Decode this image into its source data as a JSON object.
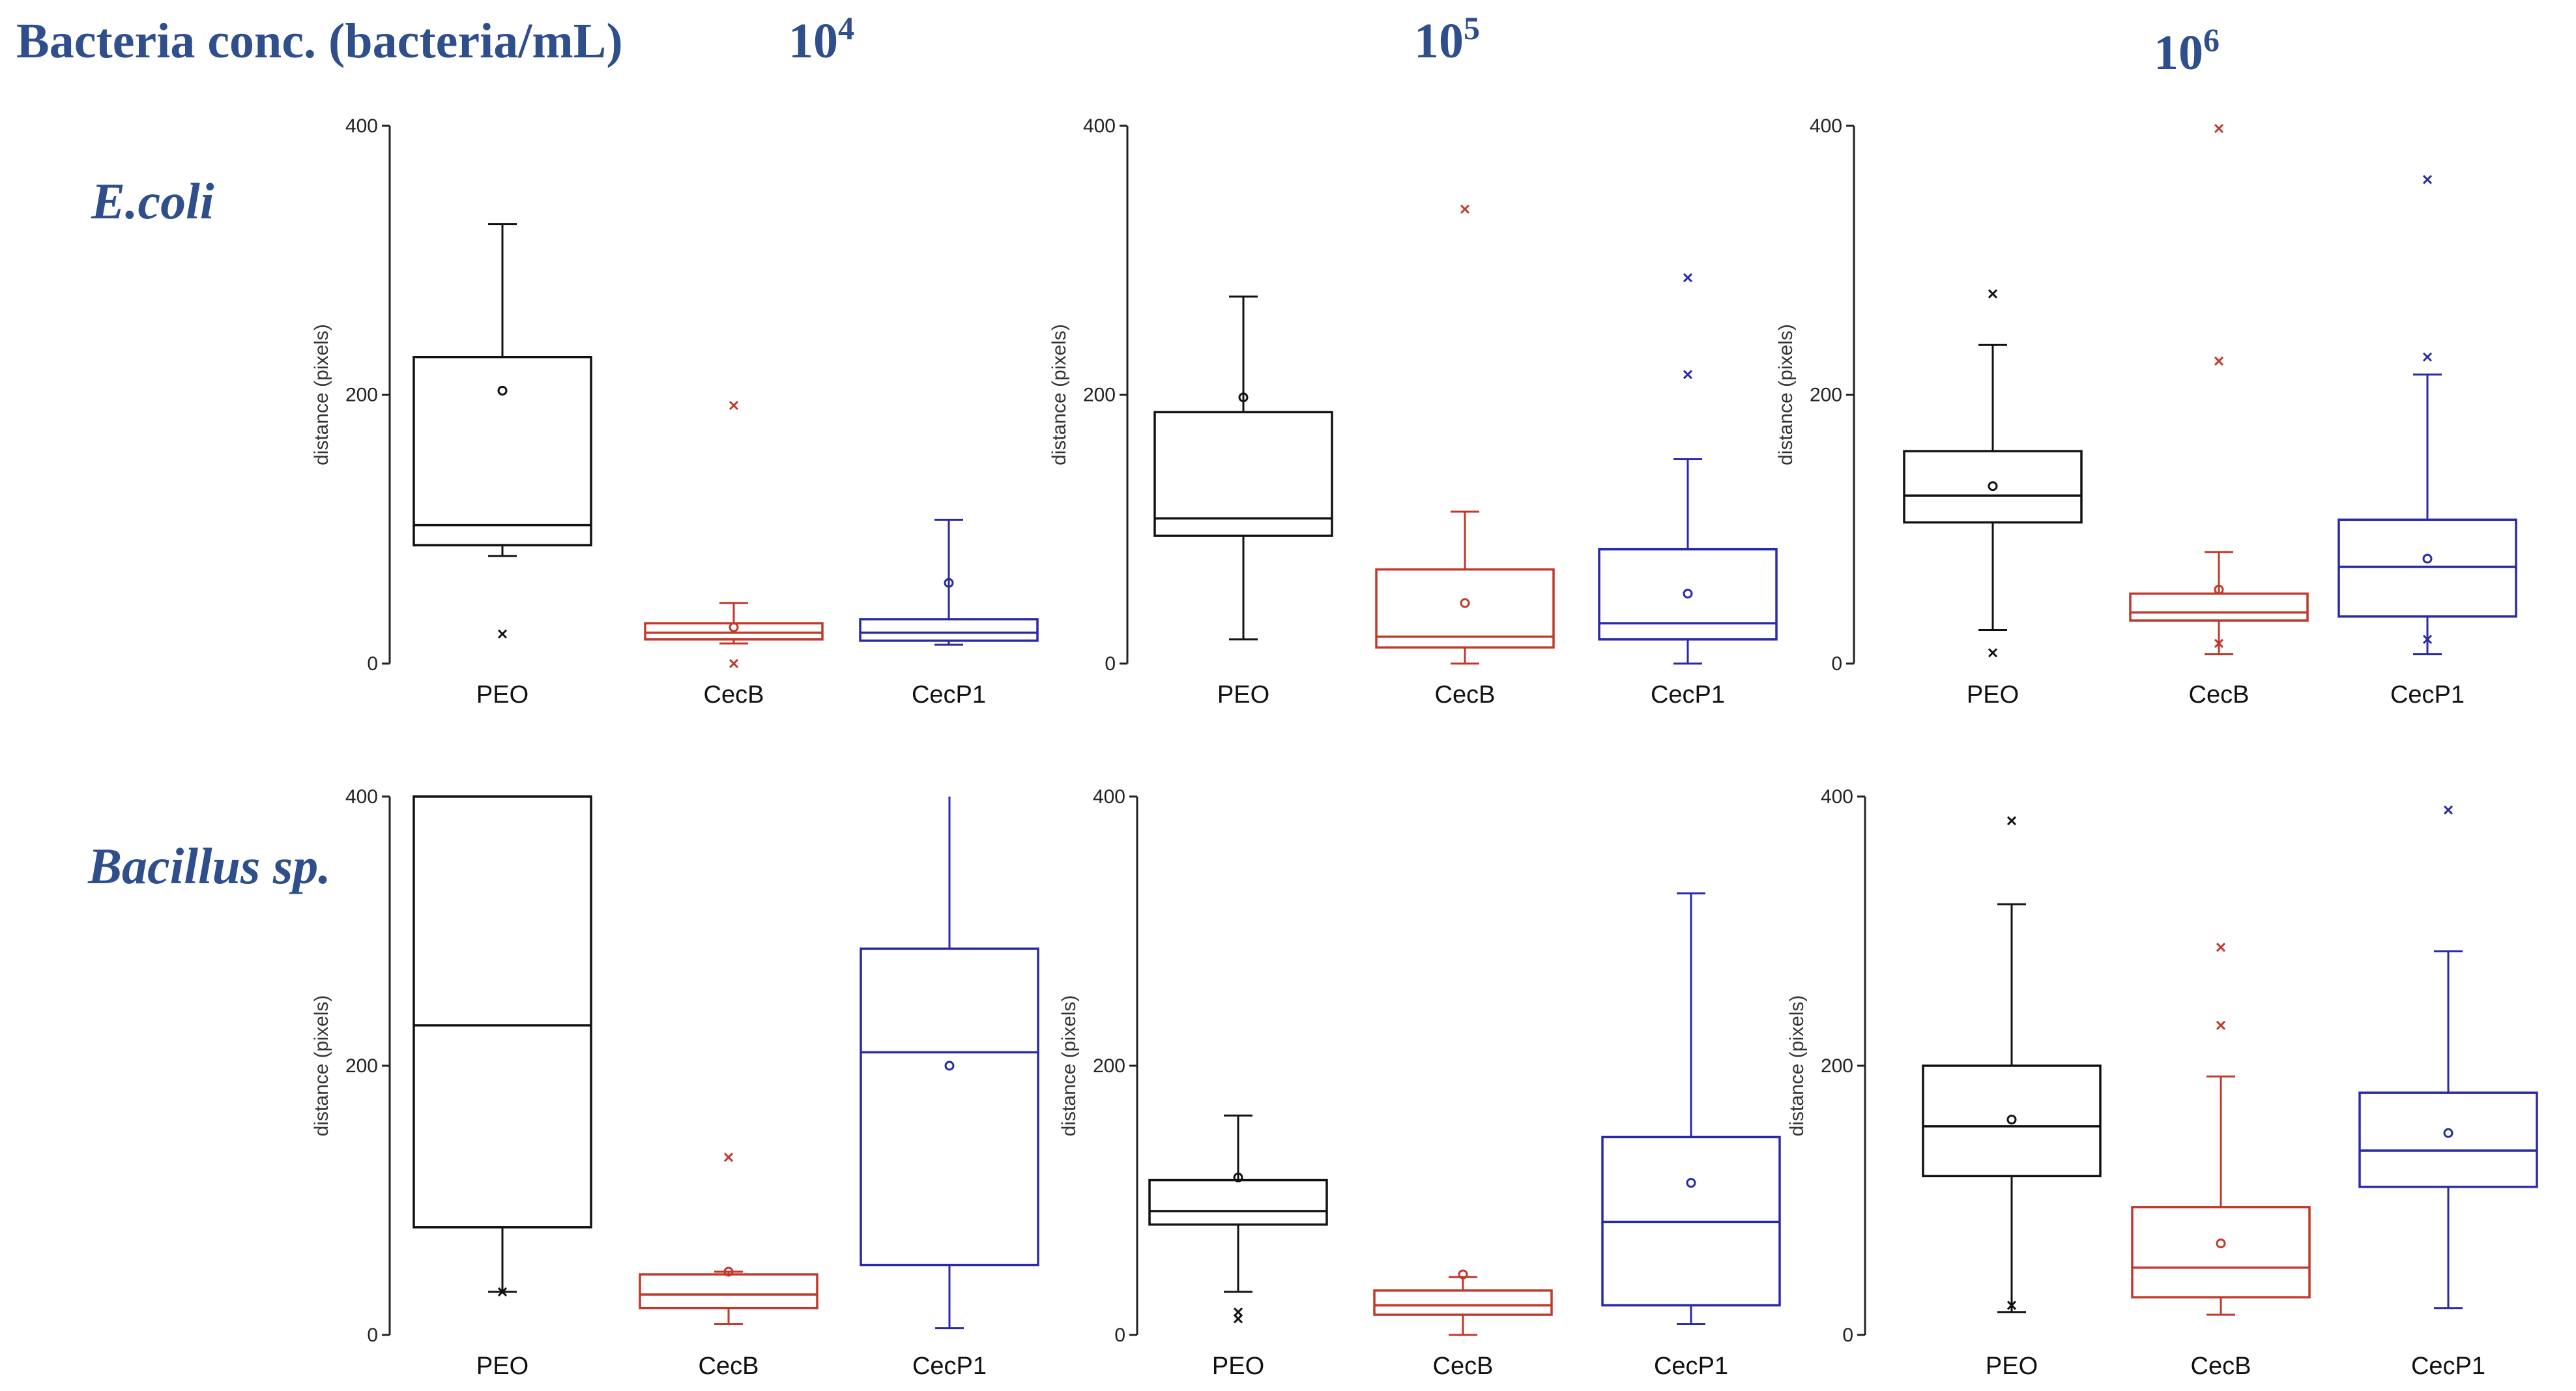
{
  "header": {
    "title": "Bacteria conc. (bacteria/mL)",
    "concentrations": [
      {
        "base": "10",
        "exp": "4"
      },
      {
        "base": "10",
        "exp": "5"
      },
      {
        "base": "10",
        "exp": "6"
      }
    ]
  },
  "rows": [
    "E.coli",
    "Bacillus sp."
  ],
  "colors": {
    "PEO": "#111111",
    "CecB": "#c0392b",
    "CecP1": "#2a2aa8",
    "header": "#2e4f8c"
  },
  "chart_data": [
    {
      "type": "box",
      "row": "E.coli",
      "concentration": "10^4",
      "ylabel": "distance (pixels)",
      "ylim": [
        0,
        400
      ],
      "yticks": [
        0,
        200,
        400
      ],
      "categories": [
        "PEO",
        "CecB",
        "CecP1"
      ],
      "boxes": [
        {
          "name": "PEO",
          "q1": 88,
          "median": 103,
          "q3": 228,
          "whisker_low": 80,
          "whisker_high": 327,
          "mean": 203,
          "outliers": [
            22
          ]
        },
        {
          "name": "CecB",
          "q1": 18,
          "median": 23,
          "q3": 30,
          "whisker_low": 15,
          "whisker_high": 45,
          "mean": 27,
          "outliers": [
            192,
            0
          ]
        },
        {
          "name": "CecP1",
          "q1": 17,
          "median": 23,
          "q3": 33,
          "whisker_low": 14,
          "whisker_high": 107,
          "mean": 60,
          "outliers": []
        }
      ]
    },
    {
      "type": "box",
      "row": "E.coli",
      "concentration": "10^5",
      "ylabel": "distance (pixels)",
      "ylim": [
        0,
        400
      ],
      "yticks": [
        0,
        200,
        400
      ],
      "categories": [
        "PEO",
        "CecB",
        "CecP1"
      ],
      "boxes": [
        {
          "name": "PEO",
          "q1": 95,
          "median": 108,
          "q3": 187,
          "whisker_low": 18,
          "whisker_high": 273,
          "mean": 198,
          "outliers": []
        },
        {
          "name": "CecB",
          "q1": 12,
          "median": 20,
          "q3": 70,
          "whisker_low": 0,
          "whisker_high": 113,
          "mean": 45,
          "outliers": [
            338
          ]
        },
        {
          "name": "CecP1",
          "q1": 18,
          "median": 30,
          "q3": 85,
          "whisker_low": 0,
          "whisker_high": 152,
          "mean": 52,
          "outliers": [
            287,
            215
          ]
        }
      ]
    },
    {
      "type": "box",
      "row": "E.coli",
      "concentration": "10^6",
      "ylabel": "distance (pixels)",
      "ylim": [
        0,
        400
      ],
      "yticks": [
        0,
        200,
        400
      ],
      "categories": [
        "PEO",
        "CecB",
        "CecP1"
      ],
      "boxes": [
        {
          "name": "PEO",
          "q1": 105,
          "median": 125,
          "q3": 158,
          "whisker_low": 25,
          "whisker_high": 237,
          "mean": 132,
          "outliers": [
            275,
            8
          ]
        },
        {
          "name": "CecB",
          "q1": 32,
          "median": 38,
          "q3": 52,
          "whisker_low": 7,
          "whisker_high": 83,
          "mean": 55,
          "outliers": [
            398,
            225,
            15
          ]
        },
        {
          "name": "CecP1",
          "q1": 35,
          "median": 72,
          "q3": 107,
          "whisker_low": 7,
          "whisker_high": 215,
          "mean": 78,
          "outliers": [
            360,
            228,
            18
          ]
        }
      ]
    },
    {
      "type": "box",
      "row": "Bacillus sp.",
      "concentration": "10^4",
      "ylabel": "distance (pixels)",
      "ylim": [
        0,
        400
      ],
      "yticks": [
        0,
        200,
        400
      ],
      "categories": [
        "PEO",
        "CecB",
        "CecP1"
      ],
      "boxes": [
        {
          "name": "PEO",
          "q1": 80,
          "median": 230,
          "q3": 400,
          "whisker_low": 32,
          "whisker_high": 400,
          "mean": null,
          "outliers": [
            32
          ]
        },
        {
          "name": "CecB",
          "q1": 20,
          "median": 30,
          "q3": 45,
          "whisker_low": 8,
          "whisker_high": 47,
          "mean": 47,
          "outliers": [
            132
          ]
        },
        {
          "name": "CecP1",
          "q1": 52,
          "median": 210,
          "q3": 287,
          "whisker_low": 5,
          "whisker_high": 400,
          "mean": 200,
          "outliers": []
        }
      ]
    },
    {
      "type": "box",
      "row": "Bacillus sp.",
      "concentration": "10^5",
      "ylabel": "distance (pixels)",
      "ylim": [
        0,
        400
      ],
      "yticks": [
        0,
        200,
        400
      ],
      "categories": [
        "PEO",
        "CecB",
        "CecP1"
      ],
      "boxes": [
        {
          "name": "PEO",
          "q1": 82,
          "median": 92,
          "q3": 115,
          "whisker_low": 32,
          "whisker_high": 163,
          "mean": 117,
          "outliers": [
            17,
            12
          ]
        },
        {
          "name": "CecB",
          "q1": 15,
          "median": 22,
          "q3": 33,
          "whisker_low": 0,
          "whisker_high": 43,
          "mean": 45,
          "outliers": []
        },
        {
          "name": "CecP1",
          "q1": 22,
          "median": 84,
          "q3": 147,
          "whisker_low": 8,
          "whisker_high": 328,
          "mean": 113,
          "outliers": []
        }
      ]
    },
    {
      "type": "box",
      "row": "Bacillus sp.",
      "concentration": "10^6",
      "ylabel": "distance (pixels)",
      "ylim": [
        0,
        400
      ],
      "yticks": [
        0,
        200,
        400
      ],
      "categories": [
        "PEO",
        "CecB",
        "CecP1"
      ],
      "boxes": [
        {
          "name": "PEO",
          "q1": 118,
          "median": 155,
          "q3": 200,
          "whisker_low": 17,
          "whisker_high": 320,
          "mean": 160,
          "outliers": [
            382,
            22
          ]
        },
        {
          "name": "CecB",
          "q1": 28,
          "median": 50,
          "q3": 95,
          "whisker_low": 15,
          "whisker_high": 192,
          "mean": 68,
          "outliers": [
            288,
            230
          ]
        },
        {
          "name": "CecP1",
          "q1": 110,
          "median": 137,
          "q3": 180,
          "whisker_low": 20,
          "whisker_high": 285,
          "mean": 150,
          "outliers": [
            390
          ]
        }
      ]
    }
  ]
}
